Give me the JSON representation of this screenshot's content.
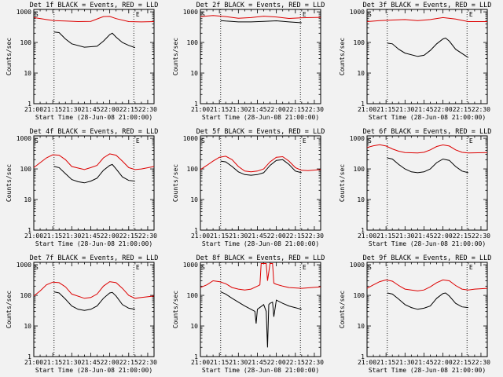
{
  "chart_data": {
    "type": "line",
    "shared": {
      "x_ticks": [
        "21:00",
        "21:15",
        "21:30",
        "21:45",
        "22:00",
        "22:15",
        "22:30"
      ],
      "x_range_minutes": [
        0,
        95
      ],
      "y_ticks": [
        "1",
        "10",
        "100",
        "1000"
      ],
      "y_scale": "log",
      "y_range": [
        1,
        1200
      ],
      "xlabel": "Start Time (28-Jun-08 21:00:00)",
      "ylabel": "Counts/sec",
      "dotted_vlines_minutes": [
        16,
        79
      ],
      "markers": {
        "S_minute": 0,
        "E_minute": 80,
        "S": "S",
        "E": "E"
      },
      "series_colors": {
        "lld": "#dd0000",
        "events": "#000000"
      }
    },
    "panels": [
      {
        "title": "Det 1f BLACK = Events, RED = LLD",
        "lld": {
          "x": [
            0,
            10,
            16,
            25,
            35,
            45,
            55,
            60,
            65,
            75,
            85,
            95
          ],
          "y": [
            650,
            560,
            520,
            500,
            480,
            490,
            700,
            710,
            600,
            480,
            470,
            480
          ]
        },
        "events": {
          "x": [
            16,
            20,
            25,
            30,
            40,
            50,
            55,
            60,
            62,
            65,
            70,
            75,
            80
          ],
          "y": [
            220,
            210,
            130,
            90,
            70,
            75,
            110,
            180,
            200,
            150,
            100,
            80,
            68
          ]
        }
      },
      {
        "title": "Det 2f BLACK = Events, RED = LLD",
        "lld": {
          "x": [
            0,
            10,
            20,
            30,
            40,
            50,
            60,
            70,
            80,
            95
          ],
          "y": [
            700,
            760,
            700,
            620,
            650,
            720,
            680,
            610,
            640,
            660
          ]
        },
        "events": {
          "x": [
            16,
            20,
            30,
            40,
            50,
            60,
            70,
            80
          ],
          "y": [
            520,
            500,
            470,
            470,
            490,
            510,
            470,
            440
          ]
        }
      },
      {
        "title": "Det 3f BLACK = Events, RED = LLD",
        "lld": {
          "x": [
            0,
            10,
            20,
            30,
            40,
            50,
            60,
            70,
            80,
            95
          ],
          "y": [
            480,
            520,
            540,
            560,
            520,
            560,
            650,
            580,
            480,
            480
          ]
        },
        "events": {
          "x": [
            16,
            20,
            25,
            30,
            40,
            45,
            50,
            55,
            60,
            62,
            65,
            70,
            80
          ],
          "y": [
            95,
            90,
            60,
            45,
            35,
            38,
            55,
            90,
            130,
            140,
            110,
            60,
            32
          ]
        }
      },
      {
        "title": "Det 4f BLACK = Events, RED = LLD",
        "lld": {
          "x": [
            0,
            5,
            10,
            15,
            20,
            25,
            30,
            40,
            45,
            50,
            55,
            60,
            65,
            70,
            75,
            80,
            85,
            95
          ],
          "y": [
            110,
            160,
            230,
            290,
            280,
            200,
            120,
            95,
            110,
            130,
            230,
            310,
            280,
            180,
            110,
            95,
            100,
            120
          ]
        },
        "events": {
          "x": [
            16,
            20,
            25,
            30,
            35,
            40,
            45,
            50,
            55,
            60,
            62,
            65,
            70,
            75,
            80
          ],
          "y": [
            120,
            110,
            70,
            45,
            38,
            35,
            40,
            50,
            90,
            130,
            140,
            100,
            55,
            42,
            40
          ]
        }
      },
      {
        "title": "Det 5f BLACK = Events, RED = LLD",
        "lld": {
          "x": [
            0,
            5,
            10,
            15,
            20,
            25,
            30,
            35,
            40,
            45,
            50,
            55,
            60,
            65,
            70,
            75,
            80,
            85,
            95
          ],
          "y": [
            95,
            130,
            180,
            240,
            260,
            200,
            120,
            85,
            80,
            85,
            100,
            170,
            240,
            250,
            180,
            110,
            90,
            88,
            95
          ]
        },
        "events": {
          "x": [
            16,
            20,
            25,
            30,
            35,
            40,
            45,
            50,
            55,
            60,
            65,
            70,
            75,
            80
          ],
          "y": [
            180,
            170,
            120,
            80,
            65,
            62,
            65,
            75,
            130,
            190,
            200,
            140,
            85,
            75
          ]
        }
      },
      {
        "title": "Det 6f BLACK = Events, RED = LLD",
        "lld": {
          "x": [
            0,
            5,
            10,
            15,
            20,
            25,
            30,
            40,
            45,
            50,
            55,
            60,
            65,
            70,
            75,
            80,
            95
          ],
          "y": [
            500,
            570,
            620,
            560,
            450,
            380,
            340,
            330,
            350,
            420,
            540,
            610,
            560,
            420,
            350,
            330,
            340
          ]
        },
        "events": {
          "x": [
            16,
            20,
            25,
            30,
            35,
            40,
            45,
            50,
            55,
            60,
            65,
            70,
            75,
            80
          ],
          "y": [
            230,
            210,
            140,
            100,
            80,
            75,
            80,
            100,
            160,
            210,
            190,
            120,
            85,
            75
          ]
        }
      },
      {
        "title": "Det 7f BLACK = Events, RED = LLD",
        "lld": {
          "x": [
            0,
            5,
            10,
            15,
            20,
            25,
            30,
            40,
            45,
            50,
            55,
            60,
            65,
            70,
            75,
            80,
            85,
            95
          ],
          "y": [
            95,
            140,
            220,
            270,
            260,
            190,
            110,
            80,
            85,
            110,
            200,
            280,
            260,
            170,
            100,
            80,
            85,
            95
          ]
        },
        "events": {
          "x": [
            16,
            20,
            25,
            30,
            35,
            40,
            45,
            50,
            55,
            60,
            62,
            65,
            70,
            75,
            80
          ],
          "y": [
            130,
            120,
            75,
            45,
            35,
            32,
            35,
            45,
            80,
            120,
            125,
            95,
            50,
            38,
            35
          ]
        }
      },
      {
        "title": "Det 8f BLACK = Events, RED = LLD",
        "lld": {
          "x": [
            0,
            5,
            10,
            15,
            20,
            25,
            30,
            35,
            40,
            45,
            47,
            48,
            50,
            52,
            53,
            55,
            57,
            58,
            60,
            65,
            70,
            80,
            95
          ],
          "y": [
            180,
            220,
            300,
            280,
            240,
            180,
            160,
            150,
            160,
            200,
            220,
            1100,
            1100,
            1100,
            300,
            1100,
            1100,
            250,
            230,
            200,
            180,
            170,
            190
          ]
        },
        "events": {
          "x": [
            16,
            20,
            25,
            30,
            35,
            40,
            43,
            44,
            45,
            50,
            52,
            53,
            54,
            55,
            57,
            58,
            60,
            65,
            70,
            80
          ],
          "y": [
            130,
            110,
            80,
            60,
            45,
            35,
            30,
            12,
            35,
            50,
            30,
            2,
            50,
            55,
            60,
            20,
            70,
            55,
            45,
            35
          ]
        }
      },
      {
        "title": "Det 9f BLACK = Events, RED = LLD",
        "lld": {
          "x": [
            0,
            5,
            10,
            15,
            20,
            25,
            30,
            40,
            45,
            50,
            55,
            60,
            65,
            70,
            75,
            80,
            85,
            95
          ],
          "y": [
            170,
            220,
            280,
            320,
            290,
            210,
            160,
            140,
            150,
            190,
            260,
            320,
            300,
            210,
            160,
            150,
            160,
            170
          ]
        },
        "events": {
          "x": [
            16,
            20,
            25,
            30,
            35,
            40,
            45,
            50,
            55,
            60,
            62,
            65,
            70,
            75,
            80
          ],
          "y": [
            120,
            110,
            75,
            50,
            40,
            35,
            38,
            45,
            80,
            115,
            120,
            95,
            55,
            42,
            40
          ]
        }
      }
    ]
  }
}
